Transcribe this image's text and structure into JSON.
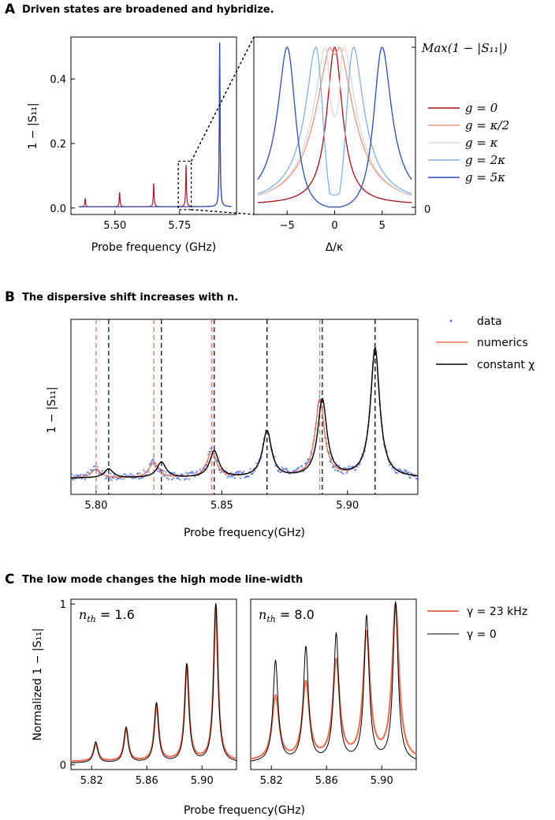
{
  "chart_data": [
    {
      "id": "A_main",
      "panel_label": "A",
      "type": "line",
      "title": "Driven states are broadened and hybridize.",
      "xlabel": "Probe frequency (GHz)",
      "ylabel": "1 − |S₁₁|",
      "xlim": [
        5.33,
        5.97
      ],
      "ylim": [
        -0.02,
        0.53
      ],
      "xticks": [
        5.5,
        5.75
      ],
      "xtick_labels": [
        "5.50",
        "5.75"
      ],
      "yticks": [
        0.0,
        0.2,
        0.4
      ],
      "ytick_labels": [
        "0.0",
        "0.2",
        "0.4"
      ],
      "background": 0.004,
      "peak_width": 0.0018,
      "series": [
        {
          "color": "#b2182b",
          "peaks": [
            [
              5.385,
              0.025
            ],
            [
              5.518,
              0.045
            ],
            [
              5.65,
              0.072
            ],
            [
              5.775,
              0.13
            ],
            [
              5.905,
              0.505
            ]
          ]
        },
        {
          "color": "#2b4bb8",
          "peaks": [
            [
              5.905,
              0.51
            ]
          ]
        }
      ],
      "inset_box": {
        "x": [
          5.745,
          5.795
        ],
        "y": [
          -0.005,
          0.145
        ]
      }
    },
    {
      "id": "A_zoom",
      "type": "line",
      "xlabel": "Δ/κ",
      "xlim": [
        -8.5,
        8.5
      ],
      "xticks": [
        -5,
        0,
        5
      ],
      "xtick_labels": [
        "−5",
        "0",
        "5"
      ],
      "right_tick_top": "Max(1 − |S₁₁|)",
      "right_tick_bottom": "0",
      "series": [
        {
          "name": "g = 0",
          "g": 0.0,
          "color": "#a50f15"
        },
        {
          "name": "g = κ/2",
          "g": 0.5,
          "color": "#f4937c"
        },
        {
          "name": "g = κ",
          "g": 1.0,
          "color": "#d9d9d9"
        },
        {
          "name": "g = 2κ",
          "g": 2.0,
          "color": "#85aee8"
        },
        {
          "name": "g = 5κ",
          "g": 5.0,
          "color": "#2b4bb8"
        }
      ]
    },
    {
      "id": "B",
      "panel_label": "B",
      "type": "line",
      "title": "The dispersive shift increases with n.",
      "xlabel": "Probe frequency(GHz)",
      "ylabel": "1 − |S₁₁|",
      "xlim": [
        5.79,
        5.928
      ],
      "ylim": [
        0.0,
        1.0
      ],
      "xticks": [
        5.8,
        5.85,
        5.9
      ],
      "xtick_labels": [
        "5.80",
        "5.85",
        "5.90"
      ],
      "constant_chi_peaks": [
        5.805,
        5.826,
        5.847,
        5.868,
        5.89,
        5.911
      ],
      "numerics_peaks": [
        5.8,
        5.823,
        5.846,
        5.868,
        5.889,
        5.911
      ],
      "peak_heights": [
        0.055,
        0.095,
        0.16,
        0.28,
        0.47,
        0.78
      ],
      "background": 0.04,
      "legend": [
        "data",
        "numerics",
        "constant χ"
      ],
      "colors": {
        "data": "#4f6fd6",
        "numerics": "#e8735a",
        "constant": "#000000"
      }
    },
    {
      "id": "C_left",
      "panel_label": "C",
      "type": "line",
      "title": "The low mode changes the high mode line-width",
      "annotation": "nth = 1.6",
      "xlabel": "Probe frequency(GHz)",
      "ylabel": "Normalized 1 − |S₁₁|",
      "xlim": [
        5.805,
        5.925
      ],
      "ylim": [
        -0.03,
        1.03
      ],
      "xticks": [
        5.82,
        5.86,
        5.9
      ],
      "xtick_labels": [
        "5.82",
        "5.86",
        "5.90"
      ],
      "yticks": [
        0,
        1
      ],
      "ytick_labels": [
        "0",
        "1"
      ],
      "peaks_x": [
        5.823,
        5.845,
        5.867,
        5.889,
        5.91
      ],
      "gamma0_heights": [
        0.14,
        0.23,
        0.38,
        0.62,
        1.0
      ],
      "gamma23_heights": [
        0.13,
        0.22,
        0.37,
        0.61,
        0.98
      ]
    },
    {
      "id": "C_right",
      "type": "line",
      "annotation": "nth = 8.0",
      "xlabel": "Probe frequency(GHz)",
      "xlim": [
        5.805,
        5.925
      ],
      "ylim": [
        -0.03,
        1.03
      ],
      "xticks": [
        5.82,
        5.86,
        5.9
      ],
      "xtick_labels": [
        "5.82",
        "5.86",
        "5.90"
      ],
      "peaks_x": [
        5.823,
        5.845,
        5.867,
        5.889,
        5.91
      ],
      "gamma0_heights": [
        0.64,
        0.72,
        0.8,
        0.91,
        1.0
      ],
      "gamma23_heights": [
        0.42,
        0.5,
        0.63,
        0.8,
        0.98
      ],
      "legend": [
        "γ = 23 kHz",
        "γ = 0"
      ],
      "colors": {
        "gamma23": "#e8735a",
        "gamma0": "#000000"
      }
    }
  ]
}
